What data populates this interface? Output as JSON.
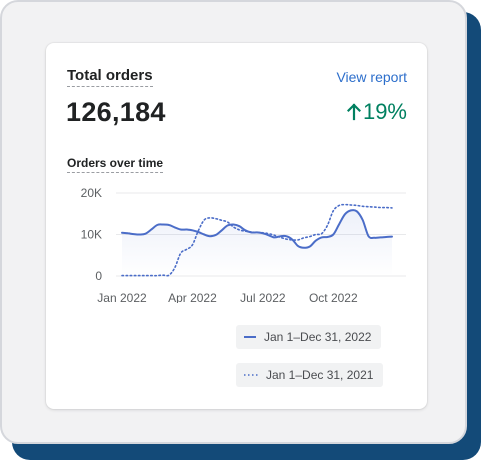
{
  "card": {
    "title": "Total orders",
    "view_link": "View report",
    "total": "126,184",
    "change": "19%",
    "change_direction": "up",
    "accent_green": "#008060",
    "accent_blue": "#2c6ecb"
  },
  "chart_title": "Orders over time",
  "chart_data": {
    "type": "line",
    "title": "Orders over time",
    "xlabel": "",
    "ylabel": "",
    "x_tick_labels": [
      "Jan 2022",
      "Apr 2022",
      "Jul 2022",
      "Oct 2022"
    ],
    "y_tick_labels": [
      "20K",
      "10K",
      "0"
    ],
    "ylim": [
      0,
      20000
    ],
    "grid": true,
    "legend_position": "bottom-right",
    "series": [
      {
        "name": "Jan 1–Dec 31, 2022",
        "style": "solid",
        "color": "#4b6dc8",
        "x": [
          0,
          0.25,
          0.5,
          0.75,
          1,
          1.25,
          1.5,
          1.75,
          2,
          2.25,
          2.5,
          2.75,
          3,
          3.25,
          3.5,
          3.75,
          4,
          4.25,
          4.5,
          4.75,
          5,
          5.25,
          5.5,
          5.75,
          6,
          6.25,
          6.5,
          6.75,
          7,
          7.25,
          7.5,
          7.75,
          8,
          8.25,
          8.5,
          8.75,
          9,
          9.25,
          9.5,
          9.75,
          10,
          10.25,
          10.5,
          10.75,
          11,
          11.25,
          11.5
        ],
        "values": [
          10400,
          10300,
          10100,
          10000,
          10200,
          11200,
          12300,
          12400,
          12300,
          11700,
          11200,
          11200,
          11000,
          10600,
          10000,
          9600,
          9900,
          11000,
          12200,
          12400,
          12000,
          11000,
          10500,
          10500,
          10300,
          9800,
          9300,
          9600,
          9600,
          8800,
          7200,
          6800,
          7100,
          8500,
          9300,
          9400,
          10000,
          12500,
          14900,
          15800,
          15600,
          13500,
          9600,
          9200,
          9300,
          9400,
          9500
        ]
      },
      {
        "name": "Jan 1–Dec 31, 2021",
        "style": "dotted",
        "color": "#4b6dc8",
        "x": [
          0,
          0.25,
          0.5,
          0.75,
          1,
          1.25,
          1.5,
          1.75,
          2,
          2.25,
          2.5,
          2.75,
          3,
          3.25,
          3.5,
          3.75,
          4,
          4.25,
          4.5,
          4.75,
          5,
          5.25,
          5.5,
          5.75,
          6,
          6.25,
          6.5,
          6.75,
          7,
          7.25,
          7.5,
          7.75,
          8,
          8.25,
          8.5,
          8.75,
          9,
          9.25,
          9.5,
          9.75,
          10,
          10.25,
          10.5,
          10.75,
          11,
          11.25,
          11.5
        ],
        "values": [
          100,
          100,
          100,
          100,
          100,
          100,
          100,
          200,
          200,
          2000,
          5500,
          6400,
          7500,
          10900,
          13500,
          14000,
          13800,
          13400,
          13000,
          11800,
          11100,
          10800,
          10600,
          10500,
          10400,
          10200,
          9800,
          9300,
          8900,
          8700,
          8700,
          9200,
          9500,
          10000,
          10200,
          12200,
          15700,
          17000,
          17200,
          17100,
          17000,
          16800,
          16700,
          16600,
          16500,
          16500,
          16400
        ]
      }
    ]
  }
}
